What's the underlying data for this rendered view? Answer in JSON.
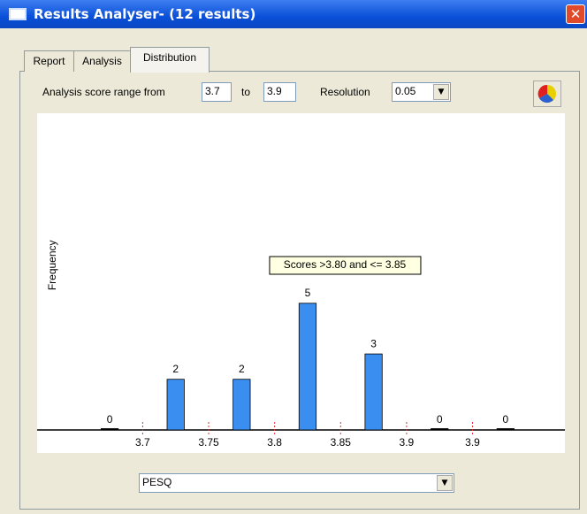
{
  "window": {
    "title": "Results Analyser- (12 results)"
  },
  "tabs": [
    "Report",
    "Analysis",
    "Distribution"
  ],
  "controls": {
    "range_label": "Analysis score range from",
    "range_from": "3.7",
    "to_label": "to",
    "range_to": "3.9",
    "resolution_label": "Resolution",
    "resolution": "0.05",
    "metric": "PESQ"
  },
  "chart_data": {
    "type": "histogram",
    "y_label": "Frequency",
    "annotation": "Scores >3.80 and <= 3.85",
    "bins": [
      3.65,
      3.7,
      3.75,
      3.8,
      3.85,
      3.9,
      3.95,
      4.0
    ],
    "values": [
      0,
      2,
      2,
      5,
      3,
      0,
      0
    ],
    "color": "#3a8ef0",
    "xlim": [
      3.62,
      4.02
    ],
    "xticks": [
      3.7,
      3.75,
      3.8,
      3.85,
      3.9,
      {
        "value": 3.95,
        "label": "3.9"
      }
    ],
    "ylim": [
      0,
      12.5
    ]
  }
}
